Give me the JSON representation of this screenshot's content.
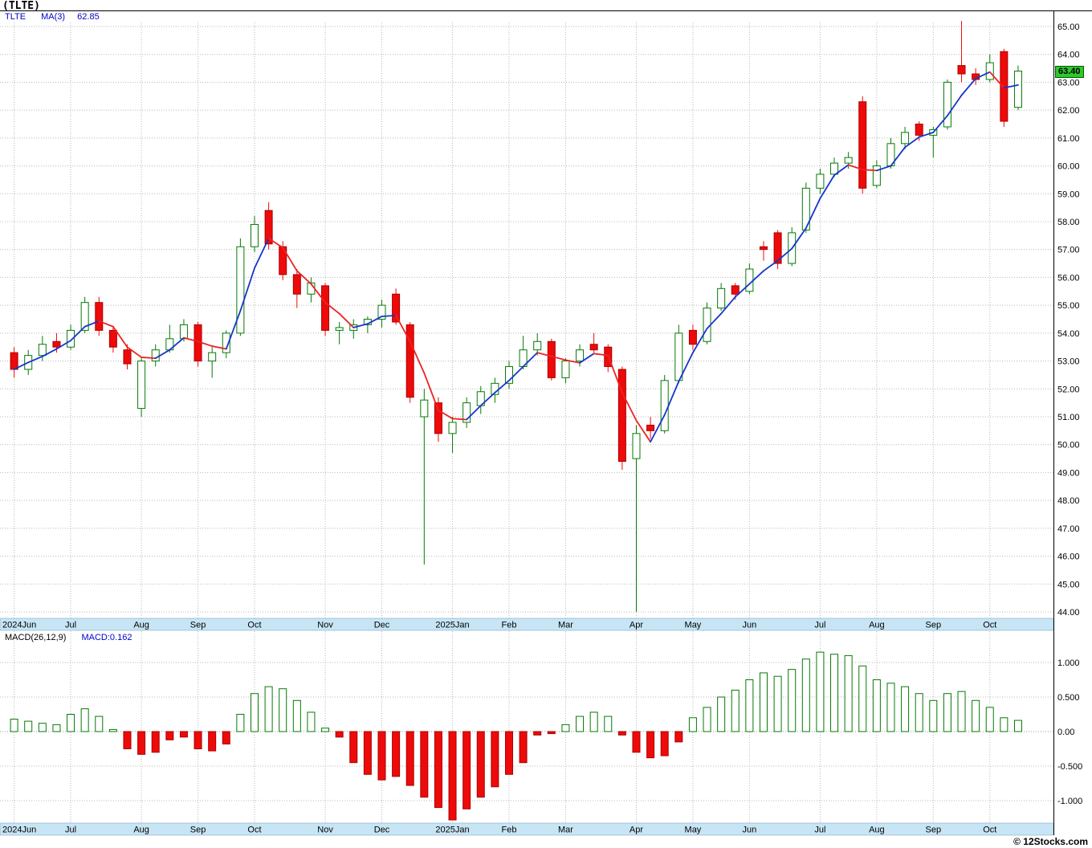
{
  "header": {
    "title": "(TLTE)",
    "symbol": "TLTE",
    "ma_label": "MA(3)",
    "ma_value": "62.85"
  },
  "price_axis": {
    "ticks": [
      "65.00",
      "64.00",
      "63.00",
      "62.00",
      "61.00",
      "60.00",
      "59.00",
      "58.00",
      "57.00",
      "56.00",
      "55.00",
      "54.00",
      "53.00",
      "52.00",
      "51.00",
      "50.00",
      "49.00",
      "48.00",
      "47.00",
      "46.00",
      "45.00",
      "44.00"
    ],
    "last_price_label": "63.40"
  },
  "macd_panel": {
    "label": "MACD(26,12,9)",
    "value_label": "MACD:0.162",
    "tick_labels": [
      "1.000",
      "0.500",
      "0.00",
      "-0.500",
      "-1.000"
    ],
    "tick_values": [
      1,
      0.5,
      0,
      -0.5,
      -1
    ]
  },
  "months": [
    {
      "label": "2024Jun",
      "index": 0
    },
    {
      "label": "Jul",
      "index": 4
    },
    {
      "label": "Aug",
      "index": 9
    },
    {
      "label": "Sep",
      "index": 13
    },
    {
      "label": "Oct",
      "index": 17
    },
    {
      "label": "Nov",
      "index": 22
    },
    {
      "label": "Dec",
      "index": 26
    },
    {
      "label": "2025Jan",
      "index": 31
    },
    {
      "label": "Feb",
      "index": 35
    },
    {
      "label": "Mar",
      "index": 39
    },
    {
      "label": "Apr",
      "index": 44
    },
    {
      "label": "May",
      "index": 48
    },
    {
      "label": "Jun",
      "index": 52
    },
    {
      "label": "Jul",
      "index": 57
    },
    {
      "label": "Aug",
      "index": 61
    },
    {
      "label": "Sep",
      "index": 65
    },
    {
      "label": "Oct",
      "index": 69
    }
  ],
  "footer": {
    "copyright": "© 12Stocks.com"
  },
  "colors": {
    "up": "#067a06",
    "down": "#ee0a0a",
    "down_stroke": "#aa0000",
    "ma_rising": "#1535cc",
    "ma_falling": "#ee2222",
    "band_bg": "#c7e5f4",
    "band_border": "#7fa8c8",
    "grid": "#b8b8b8",
    "tag_bg": "#2ec92e"
  },
  "chart_data": [
    {
      "type": "candlestick",
      "symbol": "TLTE",
      "interval": "weekly",
      "title": "(TLTE)",
      "ylabel": "Price",
      "ylim": [
        44,
        65
      ],
      "y_tick_step": 1,
      "grid": true,
      "legend_position": "top-left",
      "overlay": {
        "name": "MA(3)",
        "window": 3,
        "last_value": 62.85,
        "color_rising": "blue",
        "color_falling": "red"
      },
      "last_close": 63.4,
      "columns": [
        "open",
        "high",
        "low",
        "close"
      ],
      "candles": [
        [
          53.3,
          53.5,
          52.4,
          52.7
        ],
        [
          52.7,
          53.4,
          52.5,
          53.2
        ],
        [
          53.2,
          53.9,
          53.0,
          53.6
        ],
        [
          53.7,
          54.0,
          53.3,
          53.5
        ],
        [
          53.5,
          54.3,
          53.4,
          54.1
        ],
        [
          54.1,
          55.3,
          54.0,
          55.1
        ],
        [
          55.1,
          55.3,
          53.9,
          54.1
        ],
        [
          54.1,
          54.2,
          53.3,
          53.5
        ],
        [
          53.4,
          53.6,
          52.7,
          52.9
        ],
        [
          51.3,
          53.1,
          51.0,
          53.0
        ],
        [
          53.0,
          53.6,
          52.8,
          53.4
        ],
        [
          53.4,
          54.3,
          53.3,
          53.8
        ],
        [
          53.8,
          54.5,
          53.7,
          54.3
        ],
        [
          54.3,
          54.4,
          52.8,
          53.0
        ],
        [
          53.0,
          53.5,
          52.4,
          53.3
        ],
        [
          53.3,
          54.1,
          53.1,
          54.0
        ],
        [
          54.0,
          57.4,
          53.9,
          57.1
        ],
        [
          57.1,
          58.2,
          56.9,
          57.9
        ],
        [
          58.4,
          58.7,
          57.0,
          57.2
        ],
        [
          57.1,
          57.3,
          55.9,
          56.1
        ],
        [
          56.1,
          56.3,
          54.9,
          55.4
        ],
        [
          55.4,
          56.0,
          55.1,
          55.8
        ],
        [
          55.7,
          55.8,
          53.9,
          54.1
        ],
        [
          54.1,
          54.4,
          53.6,
          54.2
        ],
        [
          54.1,
          54.5,
          53.8,
          54.3
        ],
        [
          54.3,
          54.6,
          54.0,
          54.5
        ],
        [
          54.5,
          55.2,
          54.2,
          55.0
        ],
        [
          55.4,
          55.6,
          54.3,
          54.4
        ],
        [
          54.3,
          54.4,
          51.5,
          51.7
        ],
        [
          51.0,
          52.0,
          45.7,
          51.6
        ],
        [
          51.5,
          51.7,
          50.1,
          50.4
        ],
        [
          50.4,
          51.0,
          49.7,
          50.8
        ],
        [
          50.8,
          51.7,
          50.6,
          51.5
        ],
        [
          51.4,
          52.1,
          51.1,
          51.9
        ],
        [
          51.8,
          52.4,
          51.5,
          52.2
        ],
        [
          52.2,
          53.0,
          52.0,
          52.8
        ],
        [
          52.8,
          53.9,
          52.7,
          53.4
        ],
        [
          53.4,
          54.0,
          53.2,
          53.7
        ],
        [
          53.7,
          53.8,
          52.3,
          52.4
        ],
        [
          52.4,
          53.1,
          52.2,
          53.0
        ],
        [
          53.0,
          53.6,
          52.8,
          53.4
        ],
        [
          53.6,
          54.0,
          53.3,
          53.4
        ],
        [
          53.5,
          53.6,
          52.6,
          52.8
        ],
        [
          52.7,
          52.8,
          49.1,
          49.4
        ],
        [
          49.5,
          50.7,
          44.0,
          50.4
        ],
        [
          50.7,
          51.0,
          50.2,
          50.5
        ],
        [
          50.5,
          52.5,
          50.4,
          52.3
        ],
        [
          52.3,
          54.3,
          52.2,
          54.0
        ],
        [
          54.1,
          54.3,
          53.4,
          53.6
        ],
        [
          53.7,
          55.1,
          53.6,
          54.9
        ],
        [
          54.9,
          55.8,
          54.8,
          55.6
        ],
        [
          55.7,
          55.8,
          55.2,
          55.4
        ],
        [
          55.5,
          56.5,
          55.4,
          56.3
        ],
        [
          57.1,
          57.3,
          56.6,
          57.0
        ],
        [
          57.6,
          57.7,
          56.3,
          56.5
        ],
        [
          56.5,
          57.8,
          56.4,
          57.6
        ],
        [
          57.7,
          59.4,
          57.6,
          59.2
        ],
        [
          59.2,
          59.9,
          59.0,
          59.7
        ],
        [
          59.7,
          60.3,
          59.6,
          60.1
        ],
        [
          60.1,
          60.5,
          59.9,
          60.3
        ],
        [
          62.3,
          62.5,
          59.0,
          59.2
        ],
        [
          59.3,
          60.2,
          59.2,
          60.0
        ],
        [
          60.0,
          61.0,
          59.9,
          60.8
        ],
        [
          60.8,
          61.4,
          60.6,
          61.2
        ],
        [
          61.5,
          61.6,
          60.9,
          61.1
        ],
        [
          61.1,
          61.4,
          60.3,
          61.3
        ],
        [
          61.4,
          63.1,
          61.3,
          63.0
        ],
        [
          63.6,
          65.2,
          63.0,
          63.3
        ],
        [
          63.3,
          63.5,
          62.9,
          63.1
        ],
        [
          63.1,
          64.0,
          63.0,
          63.7
        ],
        [
          64.1,
          64.2,
          61.4,
          61.6
        ],
        [
          62.1,
          63.6,
          62.0,
          63.4
        ]
      ]
    },
    {
      "type": "bar",
      "title": "MACD(26,12,9)",
      "name": "MACD histogram",
      "last_value": 0.162,
      "ylim": [
        -1.45,
        1.35
      ],
      "y_ticks": [
        1,
        0.5,
        0,
        -0.5,
        -1
      ],
      "grid": true,
      "values": [
        0.18,
        0.15,
        0.12,
        0.1,
        0.25,
        0.33,
        0.22,
        0.03,
        -0.25,
        -0.33,
        -0.3,
        -0.12,
        -0.08,
        -0.25,
        -0.28,
        -0.18,
        0.25,
        0.55,
        0.65,
        0.62,
        0.45,
        0.28,
        0.05,
        -0.08,
        -0.45,
        -0.62,
        -0.7,
        -0.65,
        -0.78,
        -0.95,
        -1.1,
        -1.28,
        -1.12,
        -0.95,
        -0.8,
        -0.62,
        -0.45,
        -0.05,
        -0.03,
        0.1,
        0.22,
        0.28,
        0.22,
        -0.05,
        -0.3,
        -0.38,
        -0.35,
        -0.15,
        0.2,
        0.35,
        0.5,
        0.6,
        0.75,
        0.85,
        0.8,
        0.9,
        1.05,
        1.15,
        1.12,
        1.1,
        0.95,
        0.75,
        0.7,
        0.65,
        0.55,
        0.45,
        0.55,
        0.58,
        0.45,
        0.35,
        0.2,
        0.162
      ]
    }
  ]
}
